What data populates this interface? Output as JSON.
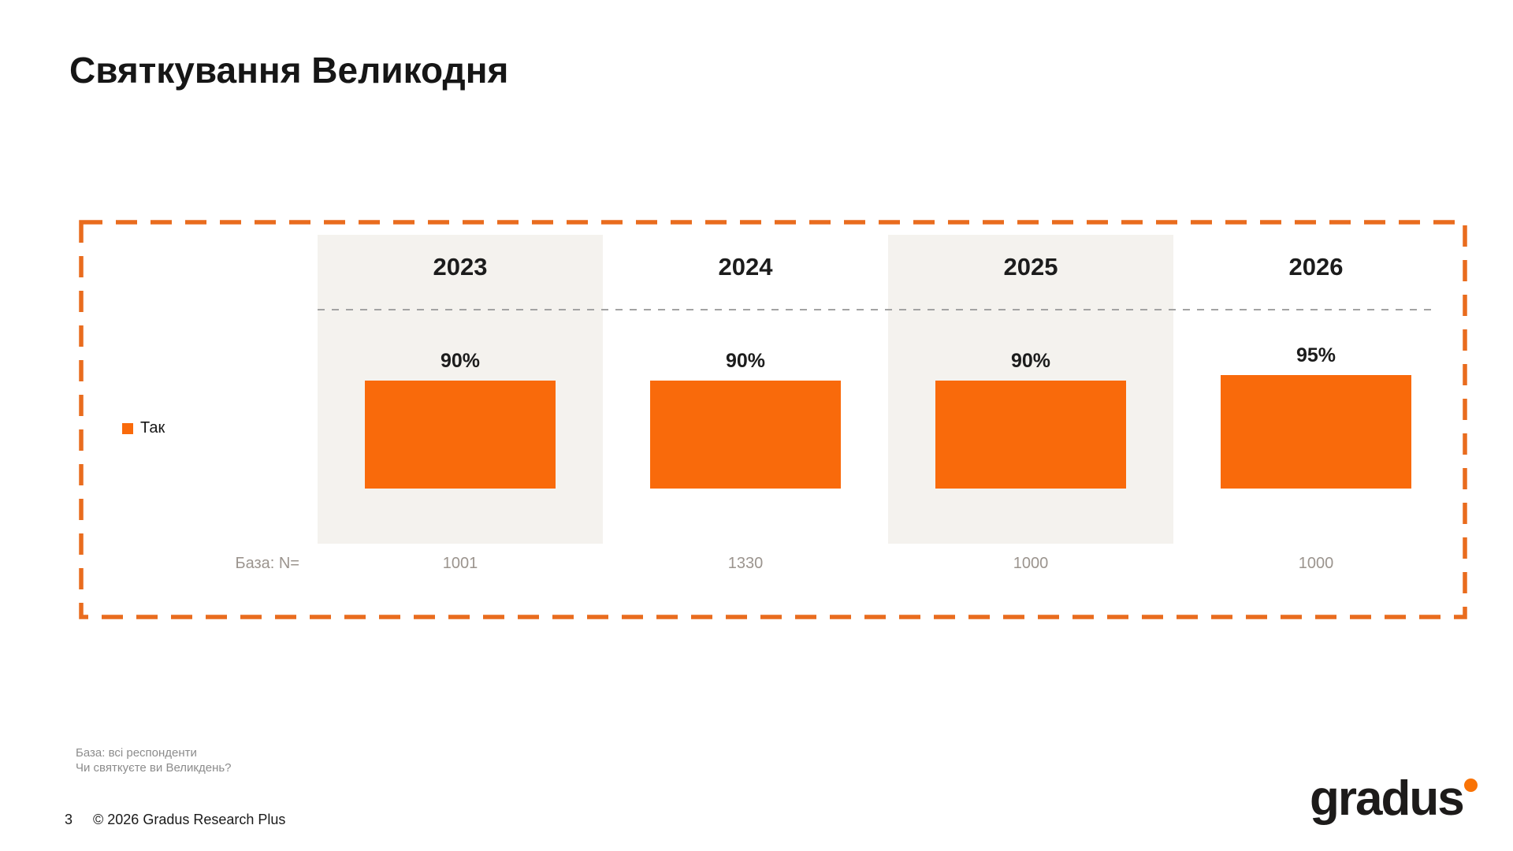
{
  "slide": {
    "title": "Святкування Великодня",
    "footnote_line1": "База: всі респонденти",
    "footnote_line2": "Чи святкуєте ви Великдень?",
    "page_number": "3",
    "copyright": "© 2026 Gradus Research Plus",
    "logo_text": "gradus"
  },
  "chart": {
    "legend": {
      "label": "Так"
    },
    "base_label": "База: N=",
    "columns": [
      {
        "year": "2023",
        "value": 90,
        "pct_label": "90%",
        "base": "1001"
      },
      {
        "year": "2024",
        "value": 90,
        "pct_label": "90%",
        "base": "1330"
      },
      {
        "year": "2025",
        "value": 90,
        "pct_label": "90%",
        "base": "1000"
      },
      {
        "year": "2026",
        "value": 95,
        "pct_label": "95%",
        "base": "1000"
      }
    ]
  },
  "chart_data": {
    "type": "bar",
    "title": "Святкування Великодня",
    "categories": [
      "2023",
      "2024",
      "2025",
      "2026"
    ],
    "series": [
      {
        "name": "Так",
        "values": [
          90,
          90,
          90,
          95
        ]
      }
    ],
    "value_labels": [
      "90%",
      "90%",
      "90%",
      "95%"
    ],
    "base_label": "База: N=",
    "bases": [
      1001,
      1330,
      1000,
      1000
    ],
    "xlabel": "",
    "ylabel": "",
    "ylim": [
      0,
      100
    ],
    "grid": false,
    "legend_position": "left",
    "shaded_categories": [
      "2023",
      "2025"
    ],
    "colors": {
      "bar": "#f96a0b",
      "frame_border": "#e96c1e",
      "shaded_column_bg": "#f4f2ee",
      "dash_separator": "#a3a3a3",
      "base_text": "#9b948e"
    }
  }
}
